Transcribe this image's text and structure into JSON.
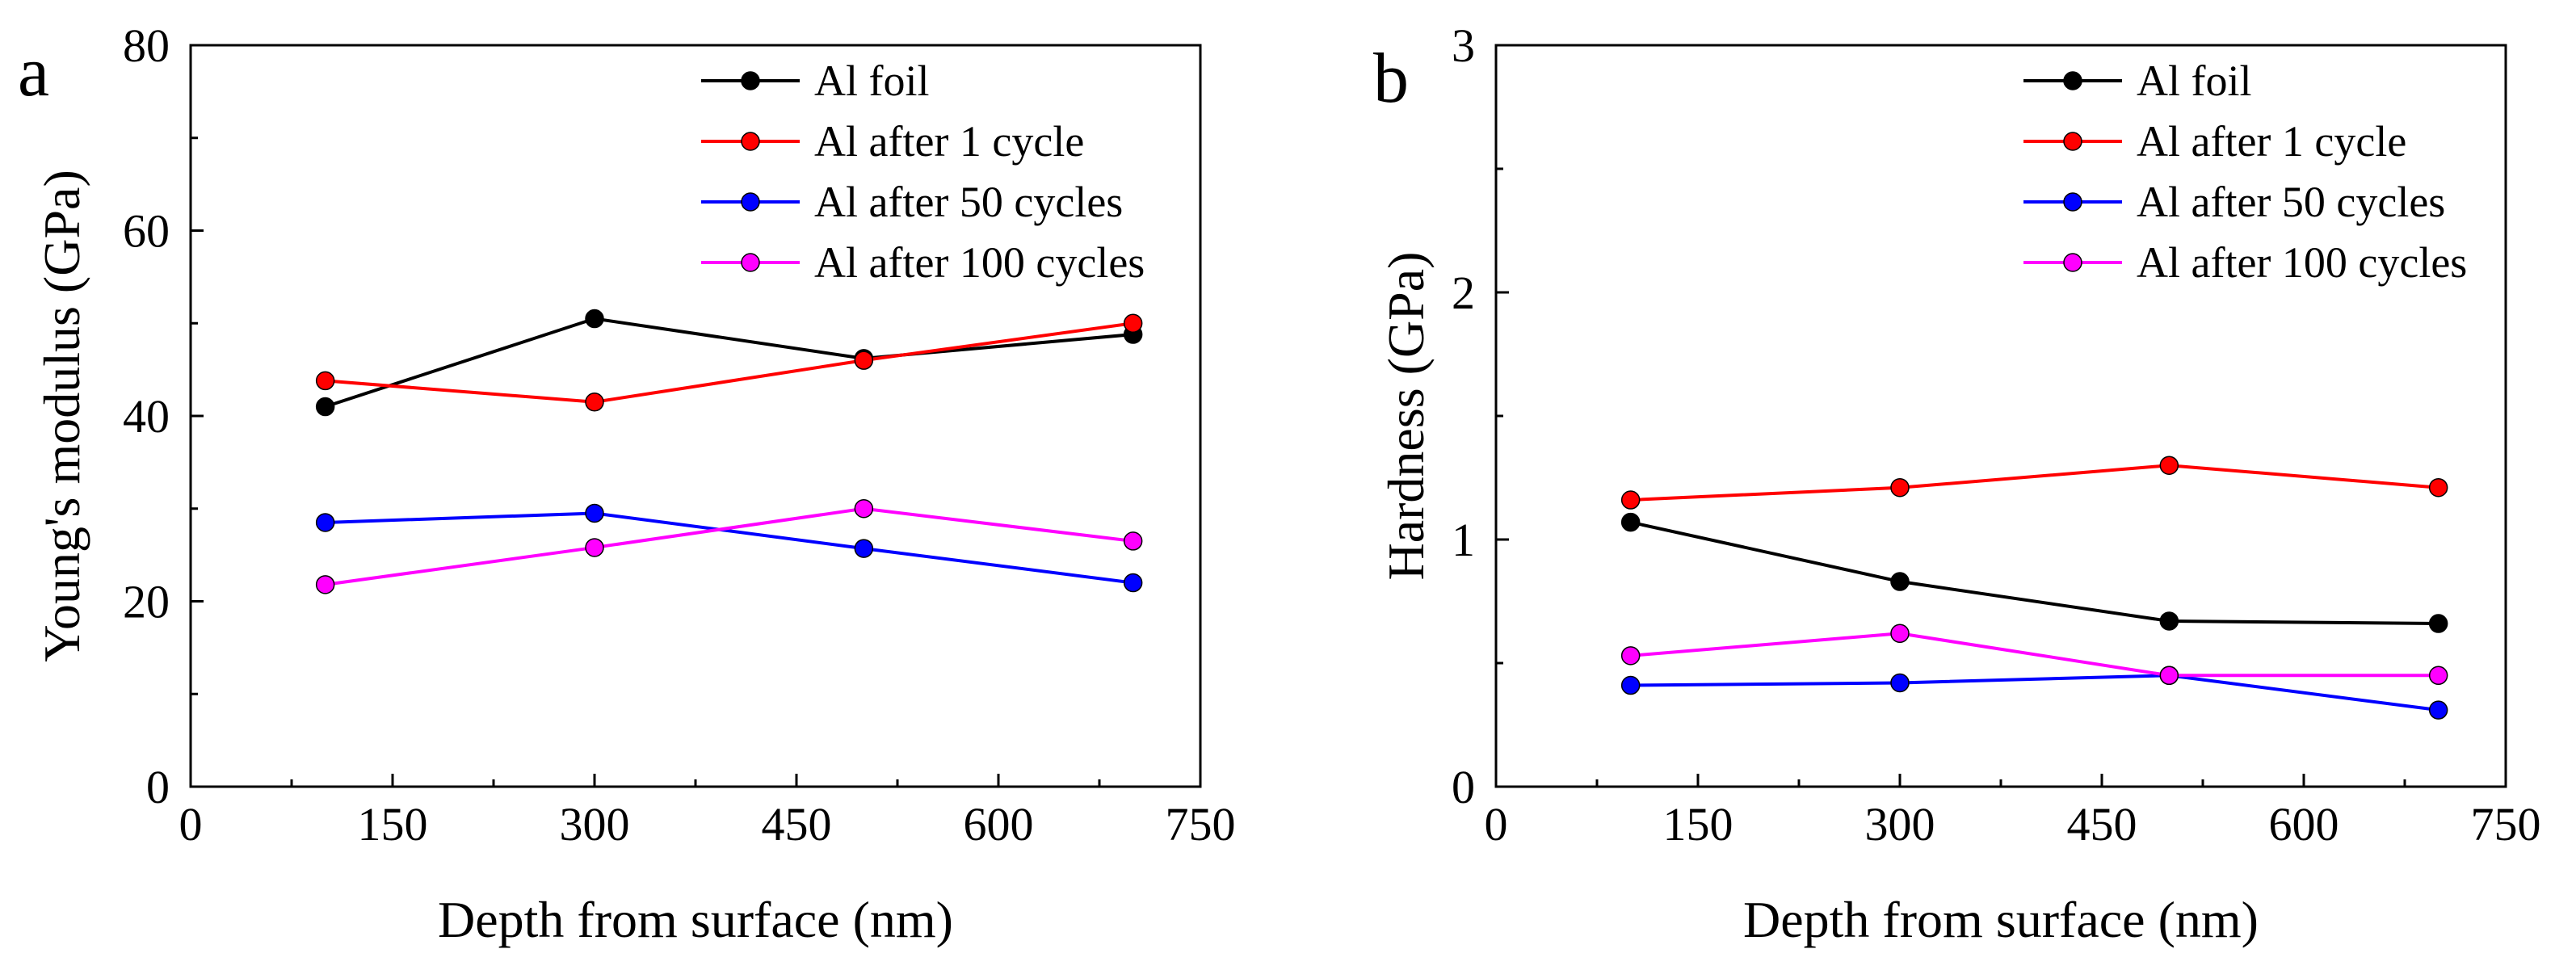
{
  "chart_data": [
    {
      "type": "line",
      "panel_label": "a",
      "xlabel": "Depth from surface (nm)",
      "ylabel": "Young's modulus (GPa)",
      "xlim": [
        0,
        750
      ],
      "ylim": [
        0,
        80
      ],
      "xticks": [
        0,
        150,
        300,
        450,
        600,
        750
      ],
      "yticks": [
        0,
        20,
        40,
        60,
        80
      ],
      "legend_position": "top-right",
      "x": [
        100,
        300,
        500,
        700
      ],
      "series": [
        {
          "name": "Al foil",
          "color": "#000000",
          "values": [
            41,
            50.5,
            46.2,
            48.8
          ]
        },
        {
          "name": "Al after 1 cycle",
          "color": "#ff0000",
          "values": [
            43.8,
            41.5,
            46,
            50
          ]
        },
        {
          "name": "Al after 50 cycles",
          "color": "#0000ff",
          "values": [
            28.5,
            29.5,
            25.7,
            22
          ]
        },
        {
          "name": "Al after 100 cycles",
          "color": "#ff00ff",
          "values": [
            21.8,
            25.8,
            30,
            26.5
          ]
        }
      ]
    },
    {
      "type": "line",
      "panel_label": "b",
      "xlabel": "Depth from surface (nm)",
      "ylabel": "Hardness (GPa)",
      "xlim": [
        0,
        750
      ],
      "ylim": [
        0,
        3
      ],
      "xticks": [
        0,
        150,
        300,
        450,
        600,
        750
      ],
      "yticks": [
        0,
        1,
        2,
        3
      ],
      "legend_position": "top-right",
      "x": [
        100,
        300,
        500,
        700
      ],
      "series": [
        {
          "name": "Al foil",
          "color": "#000000",
          "values": [
            1.07,
            0.83,
            0.67,
            0.66
          ]
        },
        {
          "name": "Al after 1 cycle",
          "color": "#ff0000",
          "values": [
            1.16,
            1.21,
            1.3,
            1.21
          ]
        },
        {
          "name": "Al after 50 cycles",
          "color": "#0000ff",
          "values": [
            0.41,
            0.42,
            0.45,
            0.31
          ]
        },
        {
          "name": "Al after 100 cycles",
          "color": "#ff00ff",
          "values": [
            0.53,
            0.62,
            0.45,
            0.45
          ]
        }
      ]
    }
  ]
}
